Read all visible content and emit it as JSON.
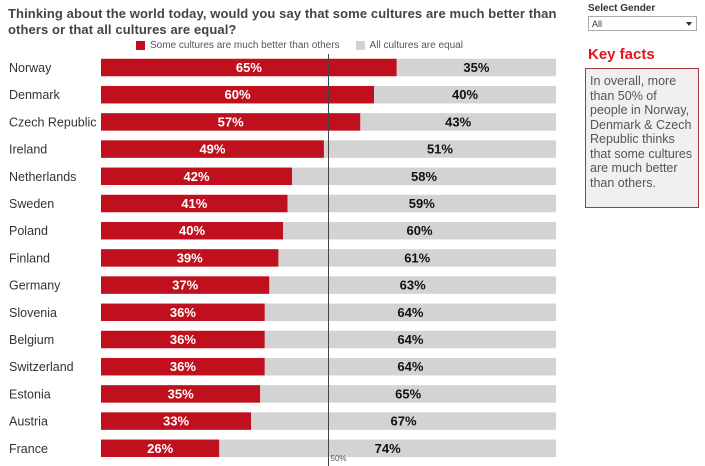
{
  "title": "Thinking about the world today, would you say that some cultures are much better than others or that all cultures are equal?",
  "legend": [
    {
      "label": "Some cultures are much better than others",
      "color": "#c0101d"
    },
    {
      "label": "All cultures are equal",
      "color": "#d3d3d3"
    }
  ],
  "filter": {
    "label": "Select Gender",
    "value": "All"
  },
  "key_facts": {
    "title": "Key facts",
    "text": "In overall, more than 50% of people in Norway, Denmark & Czech Republic thinks that some cultures are much better than others."
  },
  "chart_data": {
    "type": "bar",
    "orientation": "horizontal",
    "stacked": true,
    "percent_scale": true,
    "categories": [
      "Norway",
      "Denmark",
      "Czech Republic",
      "Ireland",
      "Netherlands",
      "Sweden",
      "Poland",
      "Finland",
      "Germany",
      "Slovenia",
      "Belgium",
      "Switzerland",
      "Estonia",
      "Austria",
      "France"
    ],
    "series": [
      {
        "name": "Some cultures are much better than others",
        "values": [
          65,
          60,
          57,
          49,
          42,
          41,
          40,
          39,
          37,
          36,
          36,
          36,
          35,
          33,
          26
        ]
      },
      {
        "name": "All cultures are equal",
        "values": [
          35,
          40,
          43,
          51,
          58,
          59,
          60,
          61,
          63,
          64,
          64,
          64,
          65,
          67,
          74
        ]
      }
    ],
    "data_labels": {
      "some": [
        "65%",
        "60%",
        "57%",
        "49%",
        "42%",
        "41%",
        "40%",
        "39%",
        "37%",
        "36%",
        "36%",
        "36%",
        "35%",
        "33%",
        "26%"
      ],
      "equal": [
        "35%",
        "40%",
        "43%",
        "51%",
        "58%",
        "59%",
        "60%",
        "61%",
        "63%",
        "64%",
        "64%",
        "64%",
        "65%",
        "67%",
        "74%"
      ]
    },
    "reference_line": {
      "value": 50,
      "label": "50%"
    },
    "xlim": [
      0,
      100
    ],
    "colors": {
      "some": "#c0101d",
      "equal": "#d3d3d3"
    },
    "legend_position": "top"
  }
}
